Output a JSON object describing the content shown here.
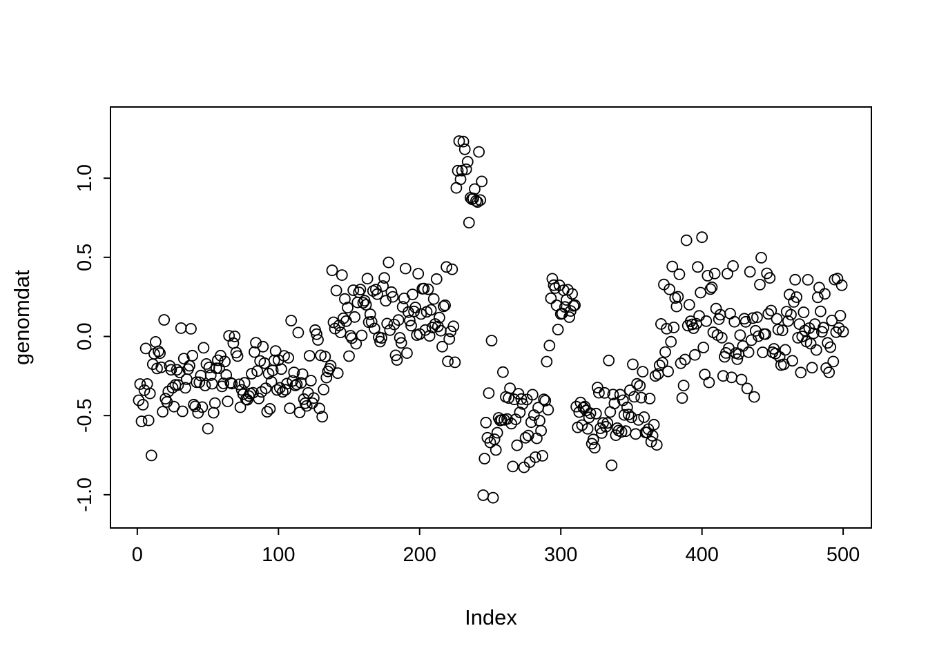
{
  "chart_data": {
    "type": "scatter",
    "title": "",
    "xlabel": "Index",
    "ylabel": "genomdat",
    "xlim": [
      -19,
      520
    ],
    "ylim": [
      -1.21,
      1.45
    ],
    "x_ticks": [
      0,
      100,
      200,
      300,
      400,
      500
    ],
    "y_ticks": [
      -1.0,
      -0.5,
      0.0,
      0.5,
      1.0
    ],
    "grid": false,
    "legend": "none",
    "n_points": 500,
    "marker": "open-circle",
    "point_color": "#000000",
    "background": "#ffffff",
    "seed": 42,
    "segments": [
      {
        "start": 1,
        "end": 137,
        "mean": -0.26,
        "sd": 0.15
      },
      {
        "start": 138,
        "end": 225,
        "mean": 0.12,
        "sd": 0.16
      },
      {
        "start": 226,
        "end": 244,
        "mean": 1.05,
        "sd": 0.16
      },
      {
        "start": 245,
        "end": 291,
        "mean": -0.55,
        "sd": 0.2
      },
      {
        "start": 292,
        "end": 310,
        "mean": 0.25,
        "sd": 0.12
      },
      {
        "start": 311,
        "end": 370,
        "mean": -0.45,
        "sd": 0.15
      },
      {
        "start": 371,
        "end": 500,
        "mean": 0.05,
        "sd": 0.2
      }
    ]
  }
}
